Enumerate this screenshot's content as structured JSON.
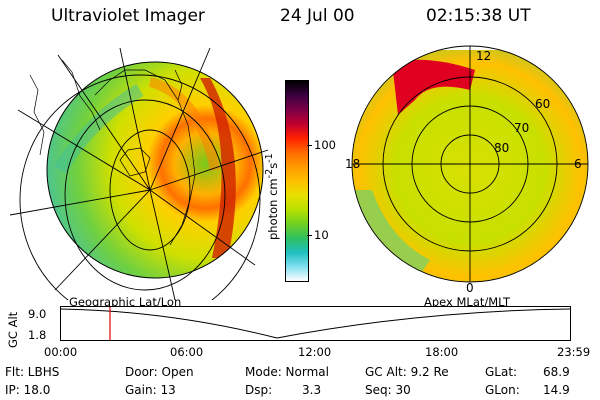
{
  "header": {
    "title": "Ultraviolet Imager",
    "date": "24 Jul 00",
    "time": "02:15:38 UT"
  },
  "colorbar": {
    "label_html": "photon cm",
    "tick_labels": [
      "100",
      "10"
    ],
    "colors": [
      "#000000",
      "#3a0040",
      "#7a0048",
      "#c00030",
      "#ff2000",
      "#ff6a00",
      "#ff9a00",
      "#ffc000",
      "#e8e000",
      "#b8e000",
      "#70d020",
      "#30c060",
      "#20c0c0",
      "#80e0f0",
      "#ffffff"
    ]
  },
  "panels": {
    "left_caption": "Geographic Lat/Lon",
    "right_caption": "Apex MLat/MLT",
    "right_mlt_labels": [
      "12",
      "18",
      "6",
      "0"
    ],
    "right_mlat_labels": [
      "60",
      "70",
      "80"
    ]
  },
  "alt_plot": {
    "axis_label": "GC Alt",
    "y_ticks": [
      "9.0",
      "1.8"
    ],
    "x_ticks": [
      "00:00",
      "06:00",
      "12:00",
      "18:00",
      "23:59"
    ]
  },
  "info": {
    "flt": "Flt: LBHS",
    "ip": "IP: 18.0",
    "door": "Door: Open",
    "gain": "Gain: 13",
    "mode": "Mode: Normal",
    "dsp_label": "Dsp:",
    "dsp_value": "3.3",
    "gc_alt": "GC Alt: 9.2 Re",
    "seq": "Seq: 30",
    "glat_label": "GLat:",
    "glat_value": "68.9",
    "glon_label": "GLon:",
    "glon_value": "14.9"
  }
}
